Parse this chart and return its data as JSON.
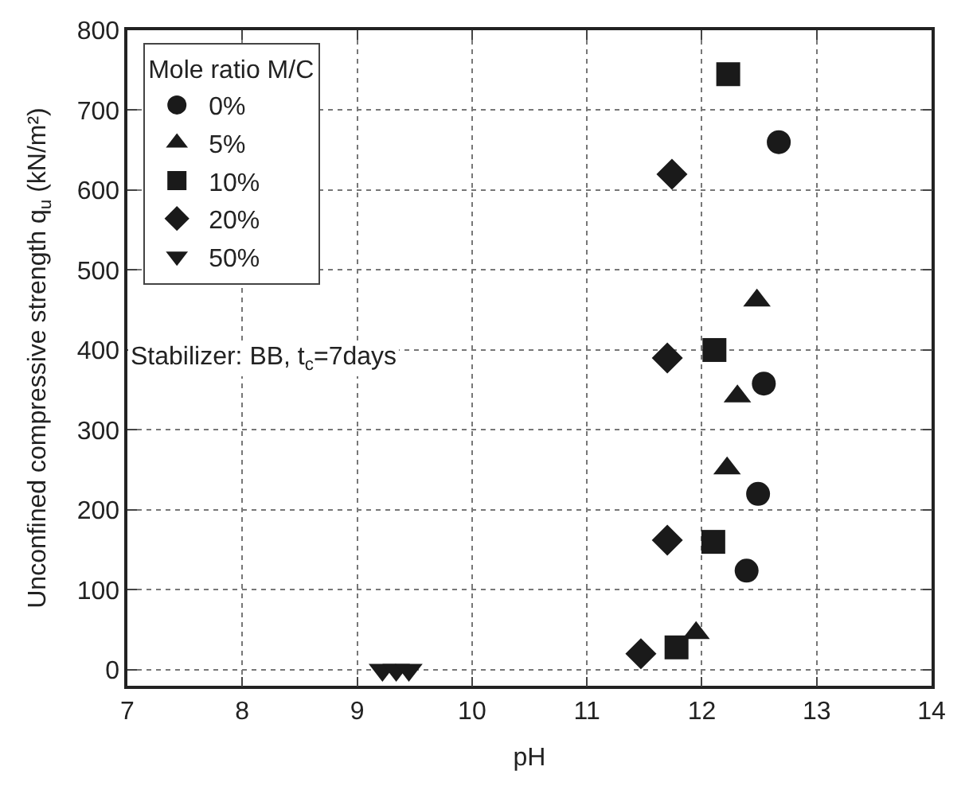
{
  "chart_data": {
    "type": "scatter",
    "xlabel": "pH",
    "ylabel": "Unconfined compressive strength q$_{u}$ (kN/m²)",
    "legend_title": "Mole ratio M/C",
    "legend": "top left",
    "grid": true,
    "xlim": [
      7,
      14
    ],
    "xticks": [
      7,
      8,
      9,
      10,
      11,
      12,
      13,
      14
    ],
    "ylim": [
      -20,
      800
    ],
    "yticks": [
      0,
      100,
      200,
      300,
      400,
      500,
      600,
      700,
      800
    ],
    "annotations": [
      "Stabilizer: BB, t$_{c}$=7days"
    ],
    "series": [
      {
        "name": "0%",
        "color": "#1a1a1a",
        "marker": "circle",
        "x": [
          12.67,
          12.54,
          12.49,
          12.39
        ],
        "values": [
          660,
          358,
          220,
          124
        ]
      },
      {
        "name": "5%",
        "color": "#1a1a1a",
        "marker": "triangle",
        "x": [
          12.48,
          12.31,
          12.22,
          11.95
        ],
        "values": [
          462,
          342,
          252,
          46
        ]
      },
      {
        "name": "10%",
        "color": "#1a1a1a",
        "marker": "square",
        "x": [
          12.23,
          12.11,
          12.1,
          11.78
        ],
        "values": [
          745,
          400,
          160,
          28
        ]
      },
      {
        "name": "20%",
        "color": "#1a1a1a",
        "marker": "diamond",
        "x": [
          11.74,
          11.7,
          11.7,
          11.47
        ],
        "values": [
          620,
          390,
          162,
          20
        ]
      },
      {
        "name": "50%",
        "color": "#1a1a1a",
        "marker": "triangle-down",
        "x": [
          9.22,
          9.34,
          9.45
        ],
        "values": [
          0,
          0,
          0
        ]
      }
    ]
  }
}
